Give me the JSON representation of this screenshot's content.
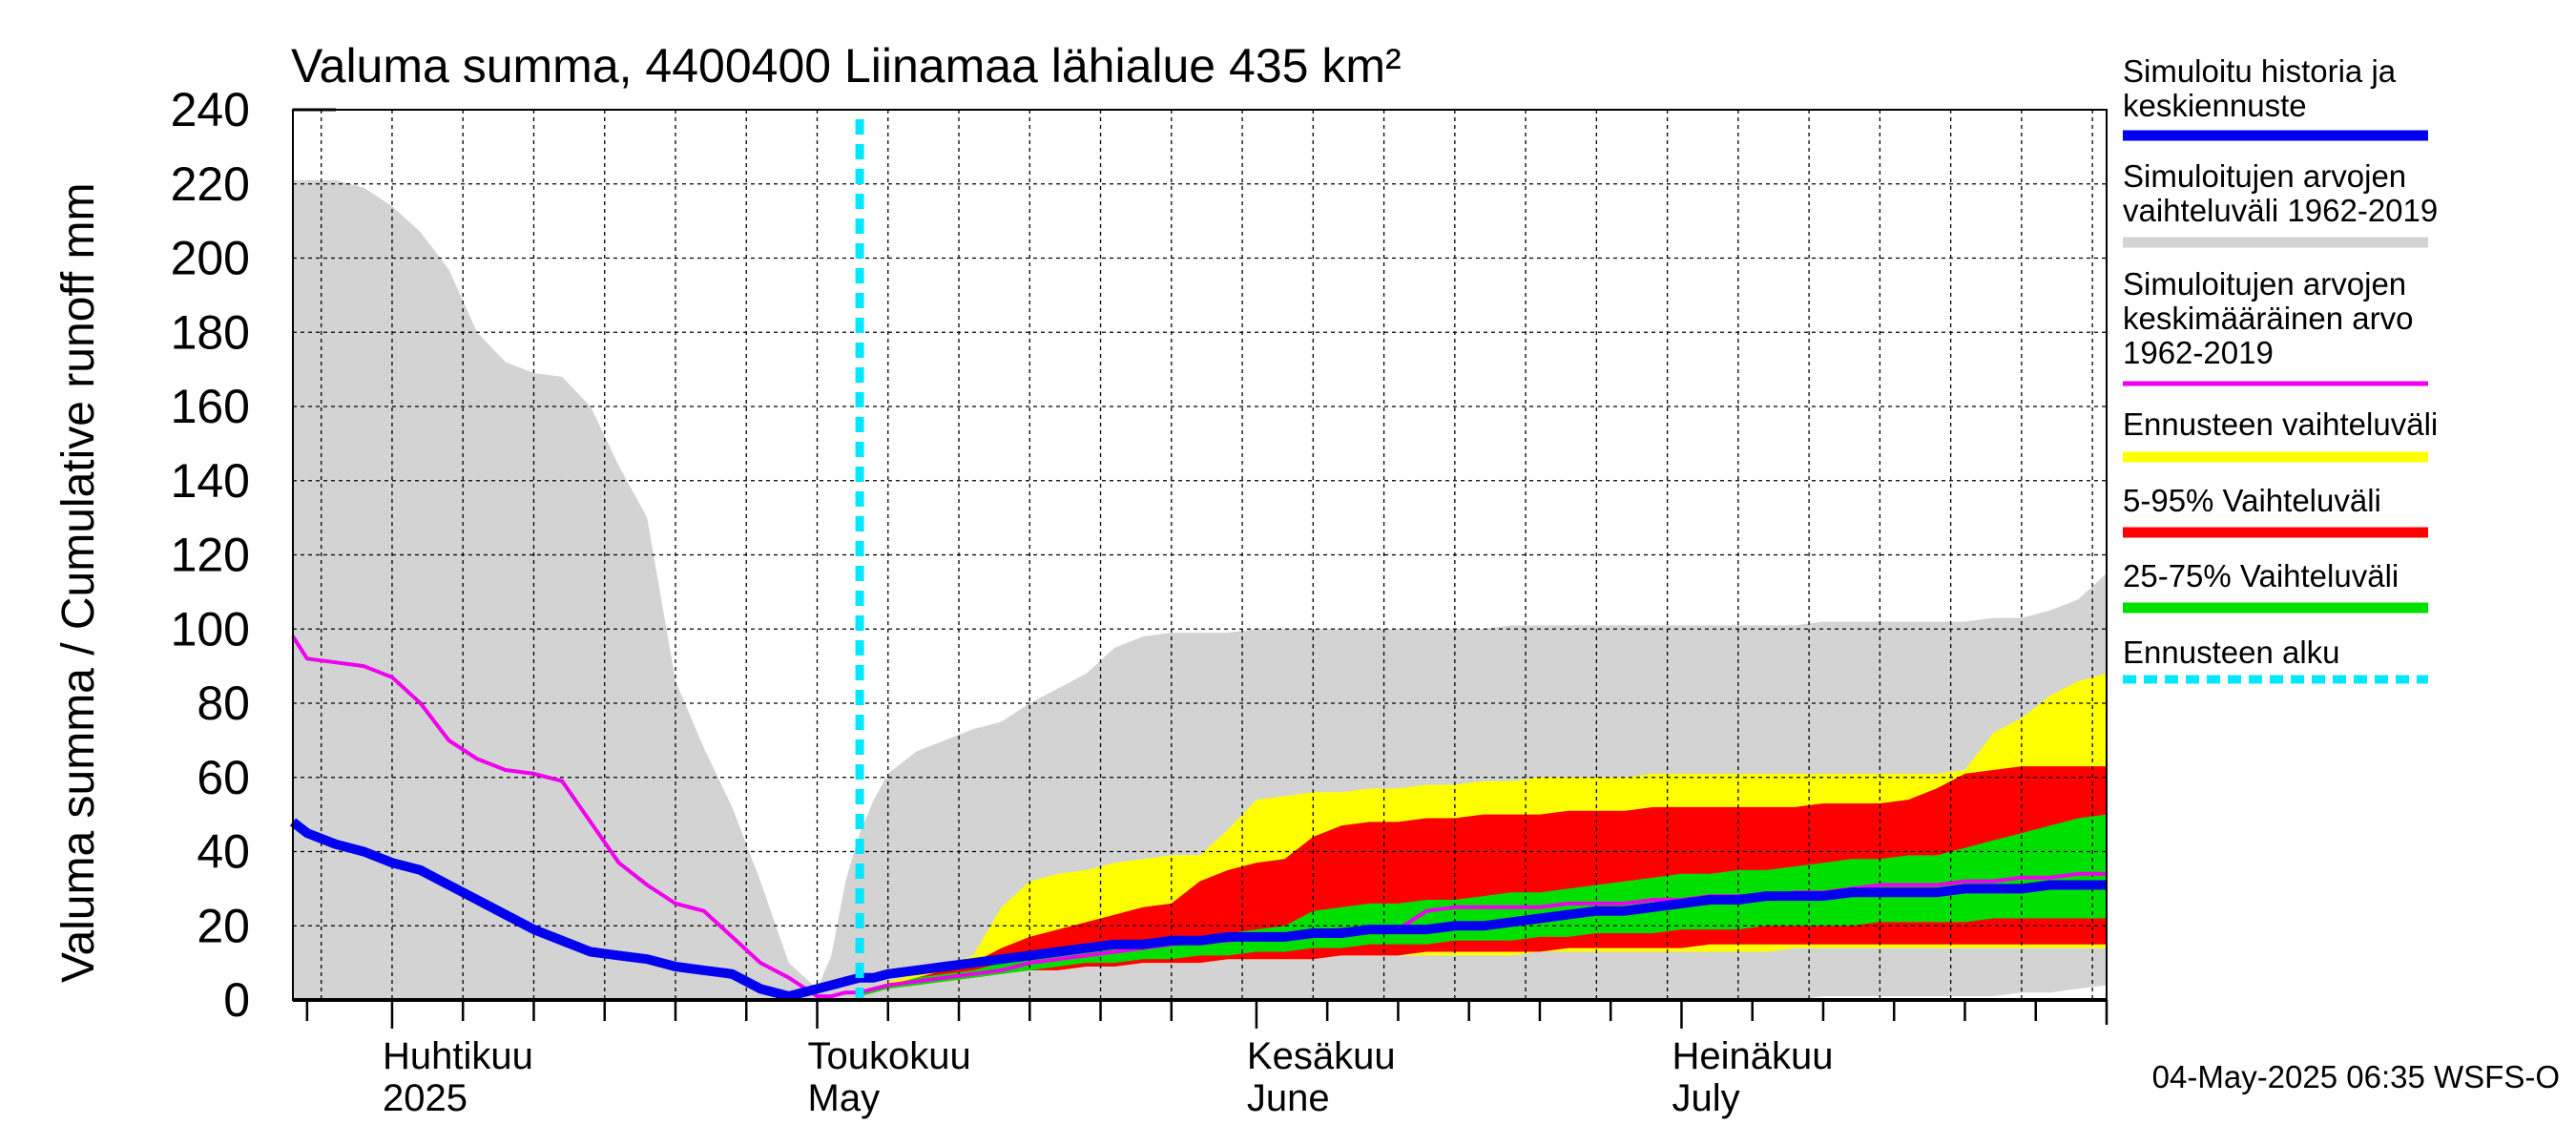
{
  "chart_data": {
    "type": "area",
    "title": "Valuma summa, 4400400 Liinamaa lähialue 435 km²",
    "ylabel": "Valuma summa / Cumulative runoff    mm",
    "ylim": [
      0,
      240
    ],
    "yticks": [
      0,
      20,
      40,
      60,
      80,
      100,
      120,
      140,
      160,
      180,
      200,
      220,
      240
    ],
    "x_range": [
      "2025-03-25",
      "2025-07-31"
    ],
    "month_labels": [
      {
        "fi": "Huhtikuu",
        "en": "2025",
        "date": "2025-04-01"
      },
      {
        "fi": "Toukokuu",
        "en": "May",
        "date": "2025-05-01"
      },
      {
        "fi": "Kesäkuu",
        "en": "June",
        "date": "2025-06-01"
      },
      {
        "fi": "Heinäkuu",
        "en": "July",
        "date": "2025-07-01"
      }
    ],
    "forecast_start": "2025-05-04",
    "colors": {
      "history_range": "#d3d3d3",
      "forecast_range": "#ffff00",
      "p5_95": "#ff0000",
      "p25_75": "#00e000",
      "median": "#0000ee",
      "mean": "#ee00ee",
      "forecast_start": "#00e8ff"
    },
    "x": [
      "2025-03-25",
      "2025-03-26",
      "2025-03-28",
      "2025-03-30",
      "2025-04-01",
      "2025-04-03",
      "2025-04-05",
      "2025-04-07",
      "2025-04-09",
      "2025-04-11",
      "2025-04-13",
      "2025-04-15",
      "2025-04-17",
      "2025-04-19",
      "2025-04-21",
      "2025-04-23",
      "2025-04-25",
      "2025-04-27",
      "2025-04-29",
      "2025-05-01",
      "2025-05-02",
      "2025-05-03",
      "2025-05-04",
      "2025-05-05",
      "2025-05-06",
      "2025-05-08",
      "2025-05-10",
      "2025-05-12",
      "2025-05-14",
      "2025-05-16",
      "2025-05-18",
      "2025-05-20",
      "2025-05-22",
      "2025-05-24",
      "2025-05-26",
      "2025-05-28",
      "2025-05-30",
      "2025-06-01",
      "2025-06-03",
      "2025-06-05",
      "2025-06-07",
      "2025-06-09",
      "2025-06-11",
      "2025-06-13",
      "2025-06-15",
      "2025-06-17",
      "2025-06-19",
      "2025-06-21",
      "2025-06-23",
      "2025-06-25",
      "2025-06-27",
      "2025-06-29",
      "2025-07-01",
      "2025-07-03",
      "2025-07-05",
      "2025-07-07",
      "2025-07-09",
      "2025-07-11",
      "2025-07-13",
      "2025-07-15",
      "2025-07-17",
      "2025-07-19",
      "2025-07-21",
      "2025-07-23",
      "2025-07-25",
      "2025-07-27",
      "2025-07-29",
      "2025-07-31"
    ],
    "history_max": [
      221,
      221,
      221,
      219,
      214,
      207,
      197,
      180,
      172,
      169,
      168,
      160,
      144,
      130,
      86,
      68,
      52,
      32,
      10,
      3,
      12,
      32,
      45,
      54,
      61,
      67,
      70,
      73,
      75,
      80,
      84,
      88,
      95,
      98,
      99,
      99,
      99,
      100,
      100,
      100,
      100,
      100,
      100,
      100,
      100,
      100,
      101,
      101,
      101,
      101,
      101,
      101,
      101,
      101,
      101,
      101,
      101,
      102,
      102,
      102,
      102,
      102,
      102,
      103,
      103,
      105,
      108,
      115
    ],
    "history_min": [
      0,
      0,
      0,
      0,
      0,
      0,
      0,
      0,
      0,
      0,
      0,
      0,
      0,
      0,
      0,
      0,
      0,
      0,
      0,
      0,
      0,
      0,
      0,
      0,
      0,
      0,
      0,
      0,
      0,
      0,
      0,
      0,
      0,
      0,
      0,
      0,
      0,
      0,
      0,
      0,
      0,
      0,
      0,
      0,
      0,
      0,
      0,
      0,
      0,
      0,
      0,
      0,
      0,
      0,
      0,
      0,
      0,
      1,
      1,
      1,
      1,
      1,
      1,
      1,
      2,
      2,
      3,
      4
    ],
    "forecast_max": [
      null,
      null,
      null,
      null,
      null,
      null,
      null,
      null,
      null,
      null,
      null,
      null,
      null,
      null,
      null,
      null,
      null,
      null,
      null,
      null,
      null,
      null,
      1,
      3,
      5,
      7,
      9,
      12,
      25,
      32,
      34,
      35,
      37,
      38,
      39,
      39,
      46,
      54,
      55,
      56,
      56,
      57,
      57,
      58,
      58,
      59,
      59,
      60,
      60,
      60,
      60,
      61,
      61,
      61,
      61,
      61,
      61,
      61,
      61,
      61,
      61,
      61,
      62,
      72,
      76,
      82,
      86,
      88
    ],
    "forecast_min": [
      null,
      null,
      null,
      null,
      null,
      null,
      null,
      null,
      null,
      null,
      null,
      null,
      null,
      null,
      null,
      null,
      null,
      null,
      null,
      null,
      null,
      null,
      1,
      2,
      3,
      4,
      5,
      6,
      7,
      8,
      8,
      9,
      9,
      10,
      10,
      10,
      11,
      11,
      11,
      11,
      12,
      12,
      12,
      12,
      12,
      12,
      12,
      13,
      13,
      13,
      13,
      13,
      13,
      13,
      13,
      13,
      14,
      14,
      14,
      14,
      14,
      14,
      14,
      14,
      14,
      14,
      14,
      14
    ],
    "p95": [
      null,
      null,
      null,
      null,
      null,
      null,
      null,
      null,
      null,
      null,
      null,
      null,
      null,
      null,
      null,
      null,
      null,
      null,
      null,
      null,
      null,
      null,
      1,
      3,
      4,
      6,
      8,
      10,
      14,
      17,
      19,
      21,
      23,
      25,
      26,
      32,
      35,
      37,
      38,
      44,
      47,
      48,
      48,
      49,
      49,
      50,
      50,
      50,
      51,
      51,
      51,
      52,
      52,
      52,
      52,
      52,
      52,
      53,
      53,
      53,
      54,
      57,
      61,
      62,
      63,
      63,
      63,
      63
    ],
    "p5": [
      null,
      null,
      null,
      null,
      null,
      null,
      null,
      null,
      null,
      null,
      null,
      null,
      null,
      null,
      null,
      null,
      null,
      null,
      null,
      null,
      null,
      null,
      1,
      2,
      3,
      4,
      5,
      6,
      7,
      8,
      8,
      9,
      9,
      10,
      10,
      10,
      11,
      11,
      11,
      11,
      12,
      12,
      12,
      13,
      13,
      13,
      13,
      13,
      14,
      14,
      14,
      14,
      14,
      15,
      15,
      15,
      15,
      15,
      15,
      15,
      15,
      15,
      15,
      15,
      15,
      15,
      15,
      15
    ],
    "p75": [
      null,
      null,
      null,
      null,
      null,
      null,
      null,
      null,
      null,
      null,
      null,
      null,
      null,
      null,
      null,
      null,
      null,
      null,
      null,
      null,
      null,
      null,
      1,
      3,
      4,
      6,
      7,
      8,
      10,
      11,
      12,
      13,
      14,
      15,
      16,
      17,
      18,
      19,
      20,
      24,
      25,
      26,
      26,
      27,
      27,
      28,
      29,
      29,
      30,
      31,
      32,
      33,
      34,
      34,
      35,
      35,
      36,
      37,
      38,
      38,
      39,
      39,
      41,
      43,
      45,
      47,
      49,
      50
    ],
    "p25": [
      null,
      null,
      null,
      null,
      null,
      null,
      null,
      null,
      null,
      null,
      null,
      null,
      null,
      null,
      null,
      null,
      null,
      null,
      null,
      null,
      null,
      null,
      1,
      2,
      3,
      4,
      5,
      6,
      7,
      8,
      9,
      10,
      10,
      11,
      11,
      12,
      12,
      13,
      13,
      14,
      14,
      15,
      15,
      15,
      16,
      16,
      16,
      17,
      17,
      18,
      18,
      18,
      19,
      19,
      19,
      20,
      20,
      20,
      20,
      21,
      21,
      21,
      21,
      22,
      22,
      22,
      22,
      22
    ],
    "median": [
      48,
      45,
      42,
      40,
      37,
      35,
      31,
      27,
      23,
      19,
      16,
      13,
      12,
      11,
      9,
      8,
      7,
      3,
      1,
      3,
      4,
      5,
      6,
      6,
      7,
      8,
      9,
      10,
      11,
      12,
      13,
      14,
      15,
      15,
      16,
      16,
      17,
      17,
      17,
      18,
      18,
      19,
      19,
      19,
      20,
      20,
      21,
      22,
      23,
      24,
      24,
      25,
      26,
      27,
      27,
      28,
      28,
      28,
      29,
      29,
      29,
      29,
      30,
      30,
      30,
      31,
      31,
      31
    ],
    "mean": [
      98,
      92,
      91,
      90,
      87,
      80,
      70,
      65,
      62,
      61,
      59,
      48,
      37,
      31,
      26,
      24,
      17,
      10,
      6,
      1,
      1,
      2,
      2,
      3,
      4,
      5,
      6,
      7,
      8,
      10,
      11,
      12,
      13,
      14,
      15,
      16,
      16,
      17,
      17,
      18,
      19,
      19,
      19,
      24,
      25,
      25,
      25,
      25,
      26,
      26,
      26,
      27,
      27,
      28,
      28,
      28,
      29,
      29,
      30,
      31,
      31,
      31,
      32,
      32,
      33,
      33,
      34,
      34
    ]
  },
  "legend": [
    {
      "label_lines": [
        "Simuloitu historia ja",
        "keskiennuste"
      ],
      "color": "#0000ee",
      "style": "line"
    },
    {
      "label_lines": [
        "Simuloitujen arvojen",
        "vaihteluväli 1962-2019"
      ],
      "color": "#d3d3d3",
      "style": "line"
    },
    {
      "label_lines": [
        "Simuloitujen arvojen",
        "keskimääräinen arvo",
        "   1962-2019"
      ],
      "color": "#ee00ee",
      "style": "thin"
    },
    {
      "label_lines": [
        "Ennusteen vaihteluväli"
      ],
      "color": "#ffff00",
      "style": "line"
    },
    {
      "label_lines": [
        "5-95% Vaihteluväli"
      ],
      "color": "#ff0000",
      "style": "line"
    },
    {
      "label_lines": [
        "25-75% Vaihteluväli"
      ],
      "color": "#00e000",
      "style": "line"
    },
    {
      "label_lines": [
        "Ennusteen alku"
      ],
      "color": "#00e8ff",
      "style": "dashed"
    }
  ],
  "timestamp": "04-May-2025 06:35 WSFS-O"
}
